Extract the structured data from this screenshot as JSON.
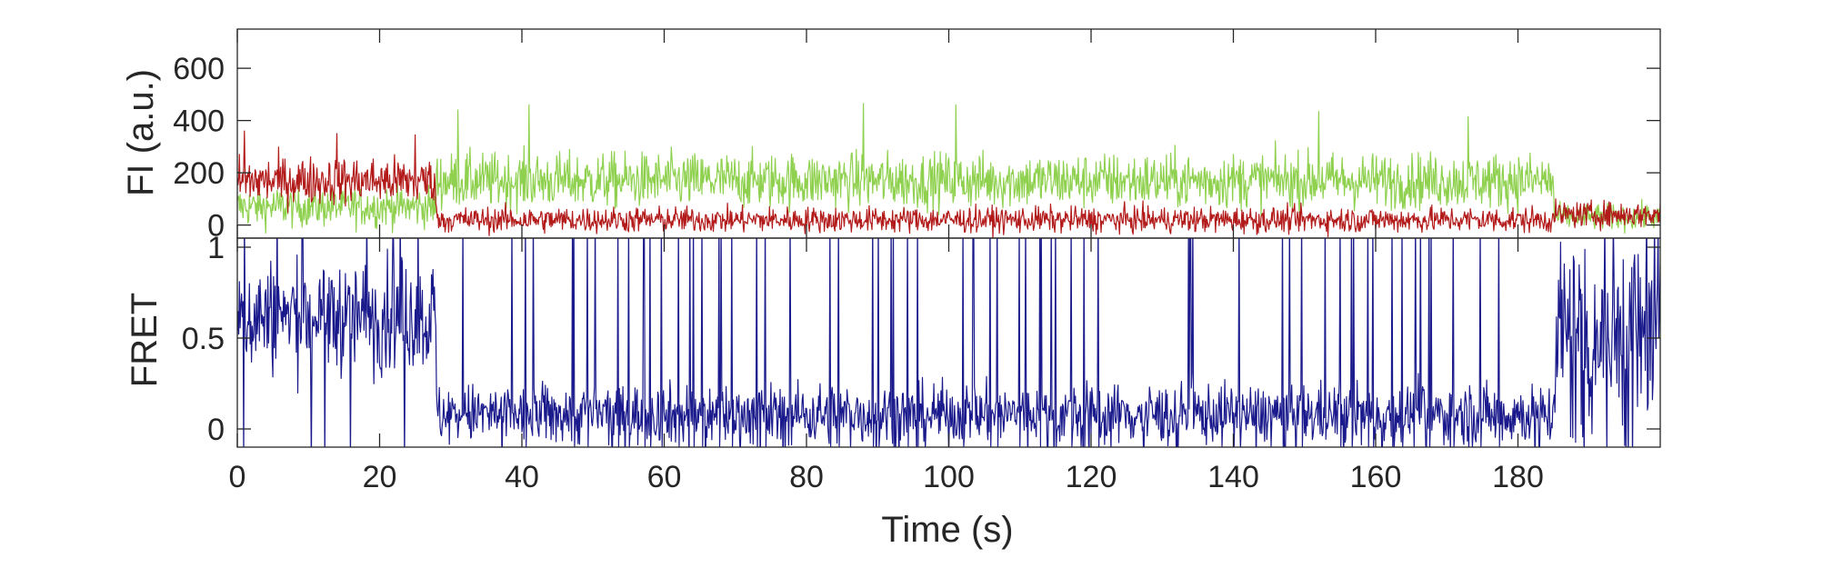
{
  "chart_data": [
    {
      "type": "line",
      "ylabel": "FI (a.u.)",
      "xlim": [
        0,
        200
      ],
      "ylim": [
        -50,
        750
      ],
      "yticks": [
        0,
        200,
        400,
        600
      ],
      "ytick_labels": [
        "0",
        "200",
        "400",
        "600"
      ],
      "grid": false,
      "series": [
        {
          "color": "#8fd14f",
          "segments": [
            {
              "t": [
                0,
                28
              ],
              "mean": 70,
              "noise": 55
            },
            {
              "t": [
                28,
                185
              ],
              "mean": 170,
              "noise": 75
            },
            {
              "t": [
                185,
                200
              ],
              "mean": 30,
              "noise": 35
            }
          ],
          "peaks": [
            [
              31,
              440
            ],
            [
              41,
              460
            ],
            [
              88,
              465
            ],
            [
              101,
              460
            ],
            [
              152,
              435
            ],
            [
              173,
              415
            ]
          ]
        },
        {
          "color": "#b31b1b",
          "segments": [
            {
              "t": [
                0,
                28
              ],
              "mean": 170,
              "noise": 65
            },
            {
              "t": [
                28,
                185
              ],
              "mean": 20,
              "noise": 35
            },
            {
              "t": [
                185,
                200
              ],
              "mean": 40,
              "noise": 35
            }
          ],
          "peaks": [
            [
              1,
              360
            ],
            [
              14,
              350
            ],
            [
              25,
              345
            ]
          ]
        }
      ]
    },
    {
      "type": "line",
      "xlabel": "Time (s)",
      "ylabel": "FRET",
      "xlim": [
        0,
        200
      ],
      "ylim": [
        -0.1,
        1.05
      ],
      "yticks": [
        0,
        0.5,
        1
      ],
      "ytick_labels": [
        "0",
        "0.5",
        "1"
      ],
      "xticks": [
        0,
        20,
        40,
        60,
        80,
        100,
        120,
        140,
        160,
        180
      ],
      "xtick_labels": [
        "0",
        "20",
        "40",
        "60",
        "80",
        "100",
        "120",
        "140",
        "160",
        "180"
      ],
      "grid": false,
      "series": [
        {
          "color": "#1a1a8c",
          "segments": [
            {
              "t": [
                0,
                28
              ],
              "mean": 0.62,
              "noise": 0.22
            },
            {
              "t": [
                28,
                185
              ],
              "mean": 0.08,
              "noise": 0.12
            },
            {
              "t": [
                185,
                200
              ],
              "mean": 0.5,
              "noise": 0.45
            }
          ],
          "spike_times": [
            40.5,
            47.3,
            49.2,
            53.5,
            55.0,
            57.2,
            58.0,
            59.6,
            62.0,
            64.1,
            65.3,
            67.7,
            69.5,
            73.0,
            74.2,
            83.3,
            84.5,
            89.3,
            90.1,
            92.2,
            94.2,
            95.6,
            105.8,
            106.8,
            109.9,
            112.8,
            115.0,
            117.2,
            119.0,
            121.0,
            146.9,
            149.6,
            155.0,
            156.6,
            158.9,
            159.6,
            162.3,
            163.7,
            167.5,
            170.9,
            174.7,
            177.3
          ]
        }
      ]
    }
  ]
}
